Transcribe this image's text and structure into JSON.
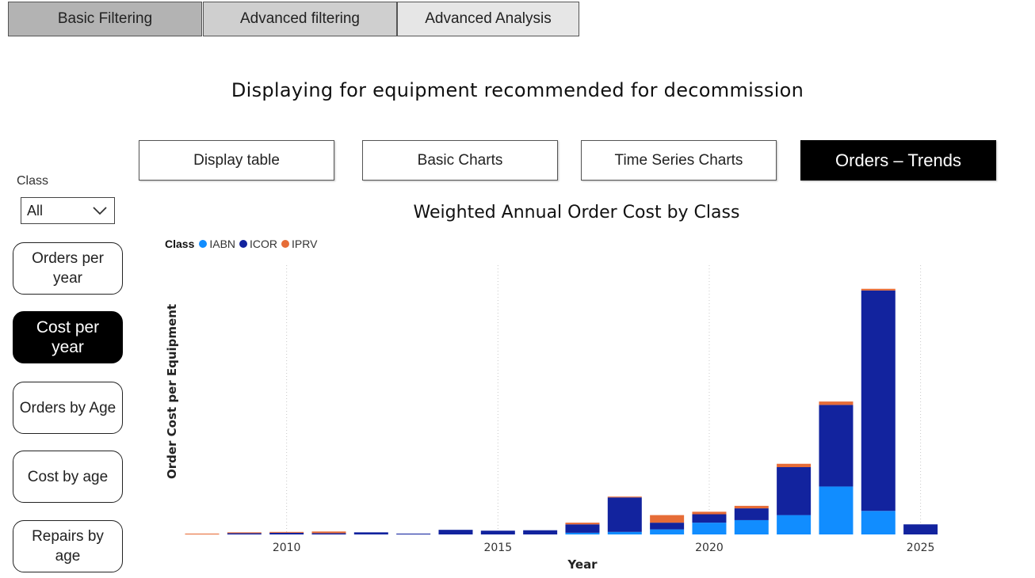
{
  "top_tabs": [
    {
      "label": "Basic Filtering"
    },
    {
      "label": "Advanced filtering"
    },
    {
      "label": "Advanced Analysis"
    }
  ],
  "page_title": "Displaying for equipment recommended for decommission",
  "view_buttons": [
    {
      "label": "Display table"
    },
    {
      "label": "Basic Charts"
    },
    {
      "label": "Time Series Charts"
    },
    {
      "label": "Orders – Trends"
    }
  ],
  "filter": {
    "label": "Class",
    "value": "All",
    "icon": "chevron-down-icon"
  },
  "side_buttons": [
    {
      "label": "Orders per year"
    },
    {
      "label": "Cost per year"
    },
    {
      "label": "Orders by Age"
    },
    {
      "label": "Cost by age"
    },
    {
      "label": "Repairs by age"
    }
  ],
  "colors": {
    "IABN": "#118DFF",
    "ICOR": "#12239E",
    "IPRV": "#E66C37",
    "active_bg": "#000000"
  },
  "chart_data": {
    "type": "bar",
    "stacked": true,
    "title": "Weighted Annual Order Cost by Class",
    "xlabel": "Year",
    "ylabel": "Order Cost per Equipment",
    "legend_title": "Class",
    "legend_position": "top-left",
    "x": [
      2008,
      2009,
      2010,
      2011,
      2012,
      2013,
      2014,
      2015,
      2016,
      2017,
      2018,
      2019,
      2020,
      2021,
      2022,
      2023,
      2024,
      2025
    ],
    "x_ticks": [
      2010,
      2015,
      2020,
      2025
    ],
    "ylim": [
      0,
      320
    ],
    "y_axis_visible": false,
    "grid": "vertical-dotted",
    "series": [
      {
        "name": "IABN",
        "values": [
          0,
          0,
          0,
          0,
          0,
          0,
          0,
          0,
          0,
          2,
          3,
          6,
          14,
          17,
          23,
          57,
          28,
          0
        ]
      },
      {
        "name": "ICOR",
        "values": [
          0,
          1.5,
          2,
          1.5,
          2.5,
          1,
          5.5,
          4.5,
          5,
          10,
          41,
          8,
          10,
          14,
          57,
          97,
          262,
          12
        ]
      },
      {
        "name": "IPRV",
        "values": [
          1,
          1,
          1,
          2,
          0,
          0,
          0,
          0,
          0,
          2,
          1,
          9,
          3,
          3,
          4,
          4,
          2,
          0
        ]
      }
    ]
  }
}
